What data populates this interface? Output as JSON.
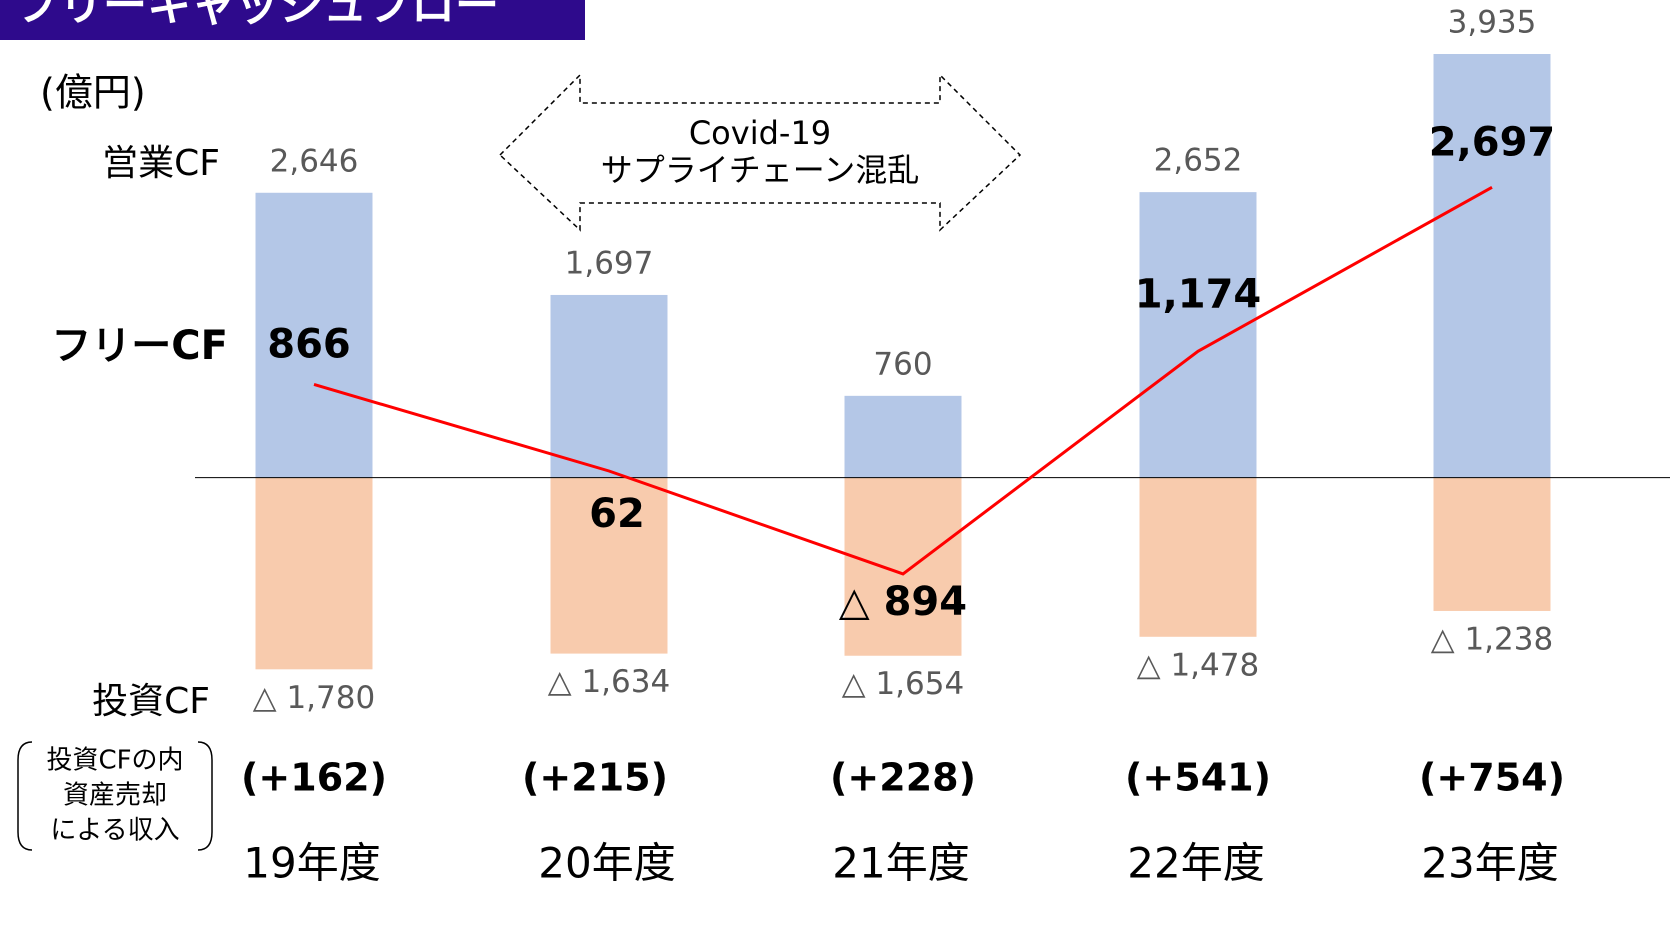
{
  "title": "フリーキャッシュフロー",
  "chart_data": {
    "type": "bar",
    "unit": "(億円)",
    "categories": [
      "19年度",
      "20年度",
      "21年度",
      "22年度",
      "23年度"
    ],
    "ylim": [
      -2000,
      4000
    ],
    "series": [
      {
        "name": "営業CF",
        "color": "#b4c7e7",
        "values": [
          2646,
          1697,
          760,
          2652,
          3935
        ],
        "value_labels": [
          "2,646",
          "1,697",
          "760",
          "2,652",
          "3,935"
        ]
      },
      {
        "name": "投資CF",
        "color": "#f8cbad",
        "values": [
          -1780,
          -1634,
          -1654,
          -1478,
          -1238
        ],
        "value_labels": [
          "△ 1,780",
          "△ 1,634",
          "△ 1,654",
          "△ 1,478",
          "△ 1,238"
        ]
      },
      {
        "name": "フリーCF",
        "type": "line",
        "color": "#ff0000",
        "values": [
          866,
          62,
          -894,
          1174,
          2697
        ],
        "value_labels": [
          "866",
          "62",
          "△ 894",
          "1,174",
          "2,697"
        ]
      }
    ],
    "asset_sale": {
      "name": [
        "投資CFの内",
        "資産売却",
        "による収入"
      ],
      "values": [
        162,
        215,
        228,
        541,
        754
      ],
      "value_labels": [
        "(+162)",
        "(+215)",
        "(+228)",
        "(+541)",
        "(+754)"
      ]
    },
    "annotation": [
      "Covid-19",
      "サプライチェーン混乱"
    ]
  }
}
